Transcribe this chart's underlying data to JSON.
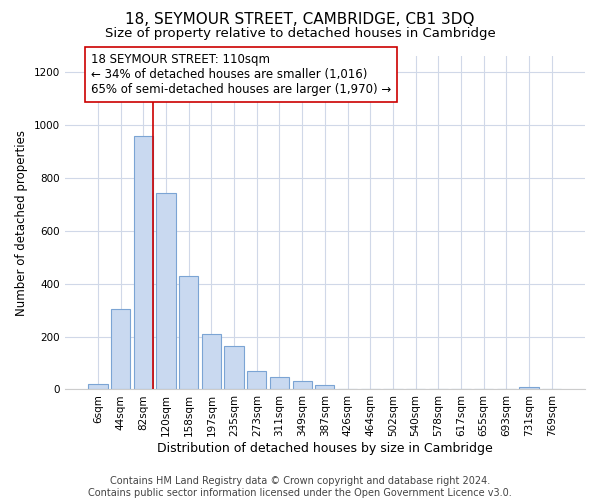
{
  "title": "18, SEYMOUR STREET, CAMBRIDGE, CB1 3DQ",
  "subtitle": "Size of property relative to detached houses in Cambridge",
  "xlabel": "Distribution of detached houses by size in Cambridge",
  "ylabel": "Number of detached properties",
  "bin_labels": [
    "6sqm",
    "44sqm",
    "82sqm",
    "120sqm",
    "158sqm",
    "197sqm",
    "235sqm",
    "273sqm",
    "311sqm",
    "349sqm",
    "387sqm",
    "426sqm",
    "464sqm",
    "502sqm",
    "540sqm",
    "578sqm",
    "617sqm",
    "655sqm",
    "693sqm",
    "731sqm",
    "769sqm"
  ],
  "bar_heights": [
    20,
    305,
    960,
    745,
    430,
    210,
    165,
    70,
    48,
    33,
    18,
    0,
    0,
    0,
    0,
    0,
    0,
    0,
    0,
    10,
    0
  ],
  "bar_color": "#c9d9f0",
  "bar_edgecolor": "#7ba4d4",
  "vline_bin_index": 2,
  "vline_color": "#cc0000",
  "annotation_text": "18 SEYMOUR STREET: 110sqm\n← 34% of detached houses are smaller (1,016)\n65% of semi-detached houses are larger (1,970) →",
  "annotation_box_edgecolor": "#cc0000",
  "annotation_box_facecolor": "#ffffff",
  "footer_line1": "Contains HM Land Registry data © Crown copyright and database right 2024.",
  "footer_line2": "Contains public sector information licensed under the Open Government Licence v3.0.",
  "ylim": [
    0,
    1260
  ],
  "yticks": [
    0,
    200,
    400,
    600,
    800,
    1000,
    1200
  ],
  "title_fontsize": 11,
  "subtitle_fontsize": 9.5,
  "xlabel_fontsize": 9,
  "ylabel_fontsize": 8.5,
  "tick_fontsize": 7.5,
  "footer_fontsize": 7,
  "annotation_fontsize": 8.5,
  "background_color": "#ffffff",
  "grid_color": "#d0d8e8"
}
